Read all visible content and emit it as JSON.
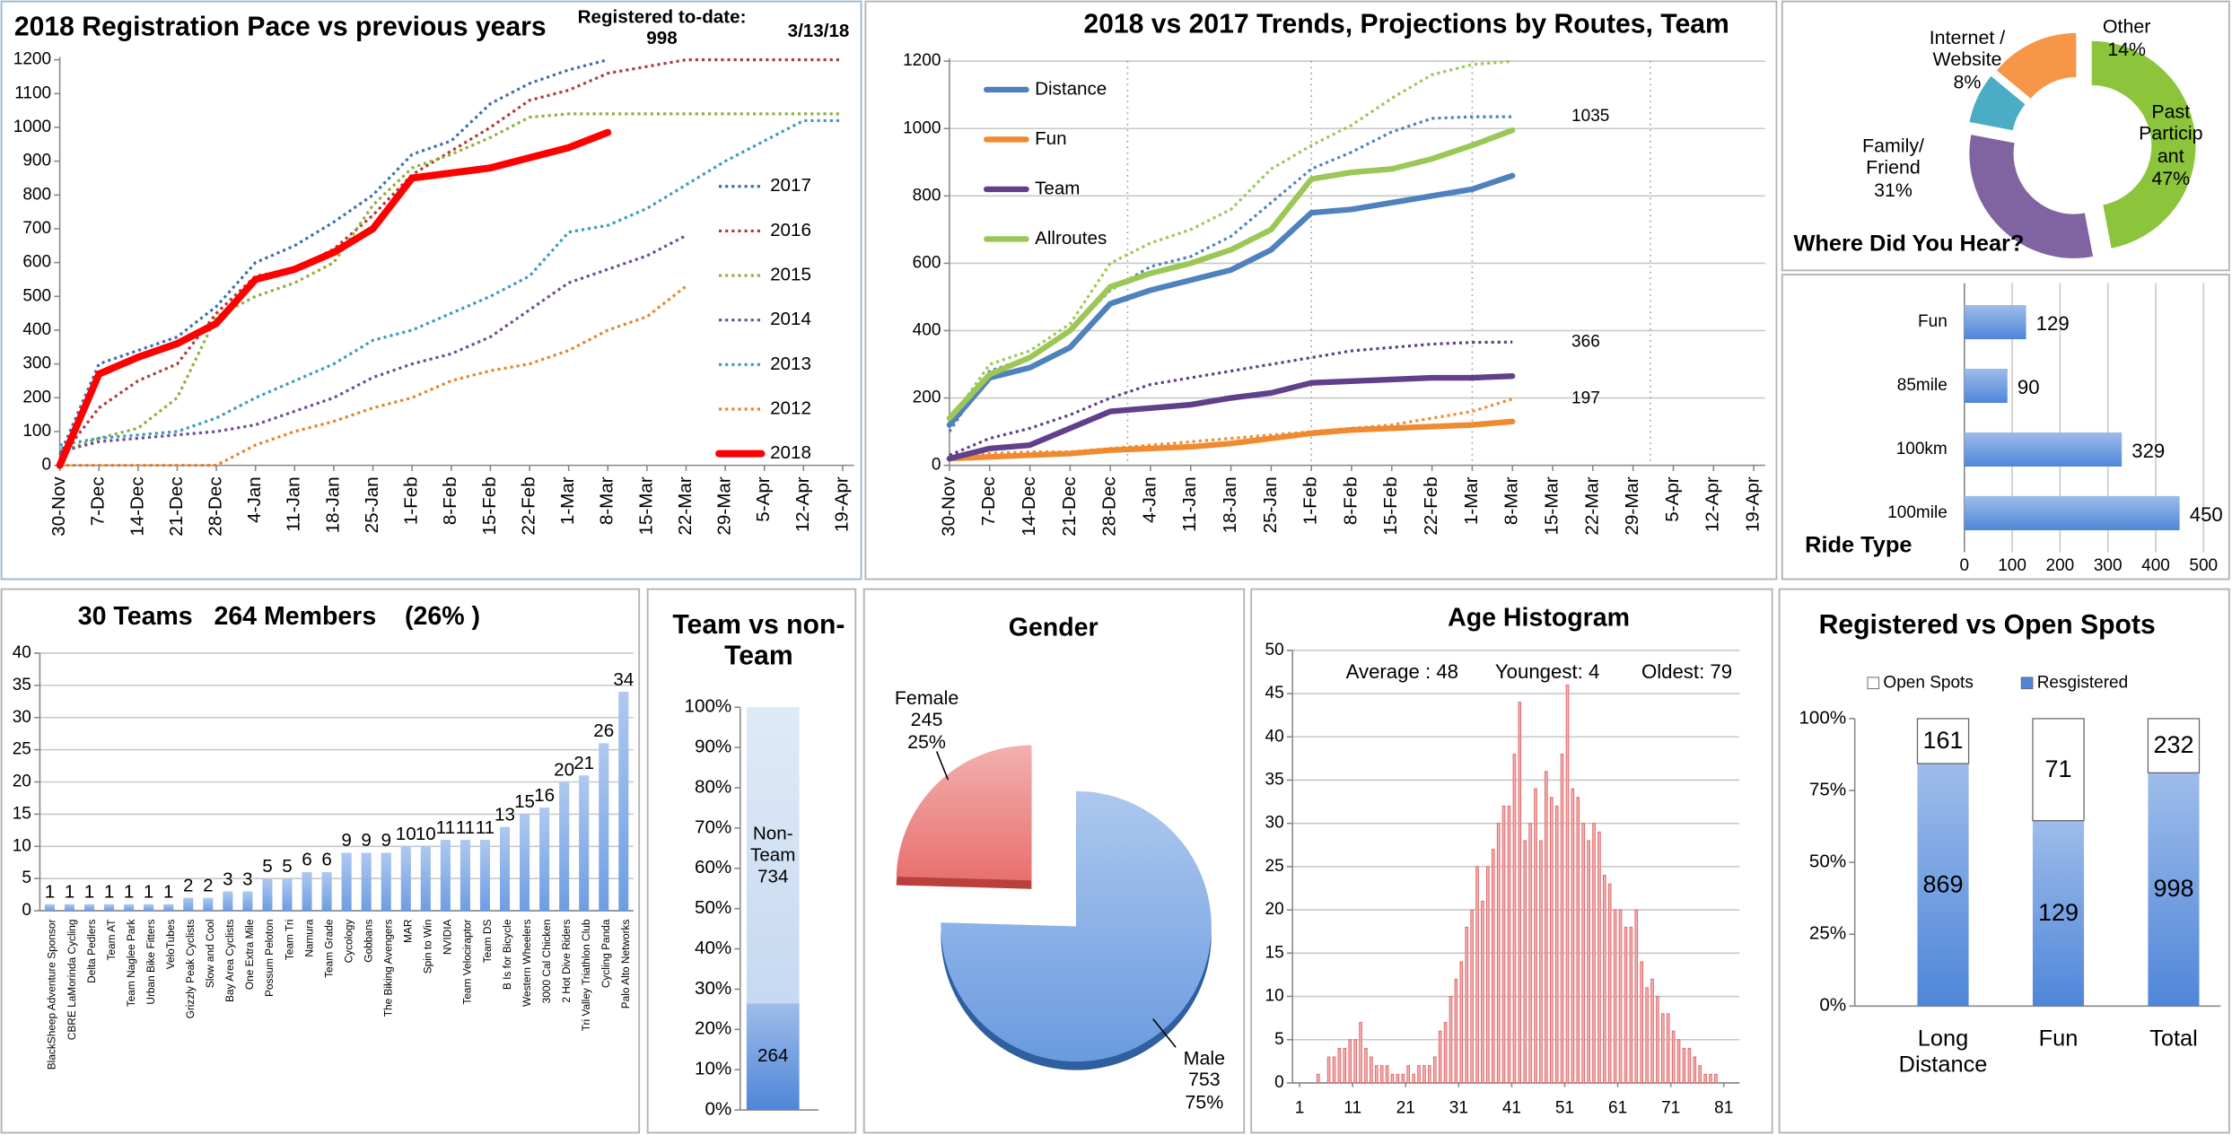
{
  "chart_data": [
    {
      "type": "line",
      "title": "2018 Registration Pace vs previous years",
      "annotations": [
        "Registered to-date: 998",
        "3/13/18"
      ],
      "categories": [
        "30-Nov",
        "7-Dec",
        "14-Dec",
        "21-Dec",
        "28-Dec",
        "4-Jan",
        "11-Jan",
        "18-Jan",
        "25-Jan",
        "1-Feb",
        "8-Feb",
        "15-Feb",
        "22-Feb",
        "1-Mar",
        "8-Mar",
        "15-Mar",
        "22-Mar",
        "29-Mar",
        "5-Apr",
        "12-Apr",
        "19-Apr"
      ],
      "ylim": [
        0,
        1200
      ],
      "yticks": [
        0,
        100,
        200,
        300,
        400,
        500,
        600,
        700,
        800,
        900,
        1000,
        1100,
        1200
      ],
      "grid": false,
      "legend": "right",
      "series": [
        {
          "name": "2017",
          "color": "#3a6fb0",
          "dash": "dotted",
          "values": [
            30,
            300,
            340,
            380,
            470,
            600,
            650,
            720,
            800,
            920,
            960,
            1070,
            1130,
            1170,
            1200,
            null,
            null,
            null,
            null,
            null,
            null
          ]
        },
        {
          "name": "2016",
          "color": "#b03a3a",
          "dash": "dotted",
          "values": [
            20,
            170,
            250,
            300,
            450,
            560,
            580,
            640,
            740,
            860,
            930,
            1000,
            1080,
            1110,
            1160,
            1180,
            1200,
            1200,
            1200,
            1200,
            1200
          ]
        },
        {
          "name": "2015",
          "color": "#8fb03a",
          "dash": "dotted",
          "values": [
            40,
            80,
            110,
            200,
            440,
            500,
            540,
            600,
            770,
            880,
            920,
            970,
            1030,
            1040,
            1040,
            1040,
            1040,
            1040,
            1040,
            1040,
            1040
          ]
        },
        {
          "name": "2014",
          "color": "#6e4d96",
          "dash": "dotted",
          "values": [
            40,
            70,
            80,
            90,
            100,
            120,
            160,
            200,
            260,
            300,
            330,
            380,
            460,
            540,
            580,
            620,
            680,
            null,
            null,
            null,
            null
          ]
        },
        {
          "name": "2013",
          "color": "#3a9bbd",
          "dash": "dotted",
          "values": [
            60,
            80,
            90,
            100,
            140,
            200,
            250,
            300,
            370,
            400,
            450,
            500,
            560,
            690,
            710,
            760,
            830,
            900,
            960,
            1020,
            1020
          ]
        },
        {
          "name": "2012",
          "color": "#e6842a",
          "dash": "dotted",
          "values": [
            0,
            0,
            0,
            0,
            0,
            60,
            100,
            130,
            170,
            200,
            250,
            280,
            300,
            340,
            400,
            440,
            530,
            null,
            null,
            null,
            null
          ]
        },
        {
          "name": "2018",
          "color": "#ff0000",
          "values": [
            0,
            270,
            320,
            360,
            420,
            550,
            580,
            630,
            700,
            850,
            865,
            880,
            910,
            940,
            985,
            null,
            null,
            null,
            null,
            null,
            null
          ]
        }
      ]
    },
    {
      "type": "line",
      "title": "2018 vs 2017 Trends, Projections by Routes, Team",
      "categories": [
        "30-Nov",
        "7-Dec",
        "14-Dec",
        "21-Dec",
        "28-Dec",
        "4-Jan",
        "11-Jan",
        "18-Jan",
        "25-Jan",
        "1-Feb",
        "8-Feb",
        "15-Feb",
        "22-Feb",
        "1-Mar",
        "8-Mar",
        "15-Mar",
        "22-Mar",
        "29-Mar",
        "5-Apr",
        "12-Apr",
        "19-Apr"
      ],
      "ylim": [
        0,
        1200
      ],
      "yticks": [
        0,
        200,
        400,
        600,
        800,
        1000,
        1200
      ],
      "grid": true,
      "legend": "top-left",
      "series": [
        {
          "color": "#4f81bd",
          "dash": "dotted",
          "end_label": 1035,
          "values": [
            100,
            280,
            320,
            400,
            520,
            590,
            620,
            680,
            780,
            880,
            930,
            990,
            1030,
            1035,
            1035,
            null,
            null,
            null,
            null,
            null,
            null
          ]
        },
        {
          "color": "#f08a30",
          "dash": "dotted",
          "end_label": 197,
          "values": [
            30,
            35,
            40,
            40,
            50,
            60,
            70,
            80,
            90,
            100,
            110,
            120,
            140,
            160,
            197,
            null,
            null,
            null,
            null,
            null,
            null
          ]
        },
        {
          "color": "#60408a",
          "dash": "dotted",
          "end_label": 366,
          "values": [
            30,
            80,
            110,
            150,
            200,
            240,
            260,
            280,
            300,
            320,
            340,
            350,
            360,
            365,
            366,
            null,
            null,
            null,
            null,
            null,
            null
          ]
        },
        {
          "color": "#9bc756",
          "dash": "dotted",
          "values": [
            130,
            300,
            340,
            420,
            600,
            660,
            700,
            760,
            880,
            950,
            1010,
            1090,
            1160,
            1190,
            1200,
            null,
            null,
            null,
            null,
            null,
            null
          ]
        },
        {
          "name": "Distance",
          "color": "#4f81bd",
          "values": [
            120,
            260,
            290,
            350,
            480,
            520,
            550,
            580,
            640,
            750,
            760,
            780,
            800,
            820,
            860,
            null,
            null,
            null,
            null,
            null,
            null
          ]
        },
        {
          "name": "Fun",
          "color": "#f08a30",
          "values": [
            20,
            25,
            30,
            35,
            45,
            50,
            55,
            65,
            80,
            95,
            105,
            110,
            115,
            120,
            130,
            null,
            null,
            null,
            null,
            null,
            null
          ]
        },
        {
          "name": "Team",
          "color": "#60408a",
          "values": [
            20,
            50,
            60,
            110,
            160,
            170,
            180,
            200,
            215,
            245,
            250,
            255,
            260,
            260,
            265,
            null,
            null,
            null,
            null,
            null,
            null
          ]
        },
        {
          "name": "Allroutes",
          "color": "#9bc756",
          "values": [
            140,
            270,
            320,
            400,
            530,
            570,
            600,
            640,
            700,
            850,
            870,
            880,
            910,
            950,
            995,
            null,
            null,
            null,
            null,
            null,
            null
          ]
        }
      ]
    },
    {
      "type": "donut",
      "title": "Where Did You Hear?",
      "categories": [
        "Past Participant",
        "Family/ Friend",
        "Internet / Website",
        "Other"
      ],
      "values": [
        47,
        31,
        8,
        14
      ],
      "value_labels": [
        "47%",
        "31%",
        "8%",
        "14%"
      ],
      "colors": [
        "#8cc43c",
        "#8064a2",
        "#4bacc6",
        "#f79646"
      ]
    },
    {
      "type": "bar",
      "orientation": "horizontal",
      "title": "Ride Type",
      "categories": [
        "Fun",
        "85mile",
        "100km",
        "100mile"
      ],
      "values": [
        129,
        90,
        329,
        450
      ],
      "color": "#4f86d9",
      "xlim": [
        0,
        500
      ],
      "xticks": [
        0,
        100,
        200,
        300,
        400,
        500
      ],
      "grid": true
    },
    {
      "type": "bar",
      "title": "30 Teams   264 Members    (26% )",
      "categories": [
        "BlackSheep Adventure Sponsor",
        "CBRE LaMorinda Cycling",
        "Delta Pedlers",
        "Team AT",
        "Team Naglee Park",
        "Urban Bike Fitters",
        "VeloTubes",
        "Grizzly Peak Cyclists",
        "Slow and Cool",
        "Bay Area Cyclists",
        "One Extra Mile",
        "Possum Peloton",
        "Team Tri",
        "Namura",
        "Team Grade",
        "Cycology",
        "Gobbans",
        "The Biking Avengers",
        "MAR",
        "Spin to Win",
        "NVIDIA",
        "Team Velociraptor",
        "Team DS",
        "B Is for Bicycle",
        "Western Wheelers",
        "3000 Cal Chicken",
        "2 Hot Dive Riders",
        "Tri Valley Triathlon Club",
        "Cycling Panda",
        "Palo Alto Networks"
      ],
      "values": [
        1,
        1,
        1,
        1,
        1,
        1,
        1,
        2,
        2,
        3,
        3,
        5,
        5,
        6,
        6,
        9,
        9,
        9,
        10,
        10,
        11,
        11,
        11,
        13,
        15,
        16,
        20,
        21,
        26,
        34
      ],
      "color": "#6d9de3",
      "ylim": [
        0,
        40
      ],
      "yticks": [
        0,
        5,
        10,
        15,
        20,
        25,
        30,
        35,
        40
      ],
      "grid": true
    },
    {
      "type": "stacked_bar",
      "normalize": true,
      "title": "Team vs non-Team",
      "ylim": [
        0,
        100
      ],
      "yticks": [
        {
          "value": 0,
          "label": "0%"
        },
        {
          "value": 10,
          "label": "10%"
        },
        {
          "value": 20,
          "label": "20%"
        },
        {
          "value": 30,
          "label": "30%"
        },
        {
          "value": 40,
          "label": "40%"
        },
        {
          "value": 50,
          "label": "50%"
        },
        {
          "value": 60,
          "label": "60%"
        },
        {
          "value": 70,
          "label": "70%"
        },
        {
          "value": 80,
          "label": "80%"
        },
        {
          "value": 90,
          "label": "90%"
        },
        {
          "value": 100,
          "label": "100%"
        }
      ],
      "series": [
        {
          "color": "#4f86d9",
          "values": [
            264
          ]
        },
        {
          "name": "Non-Team",
          "color": "#c6d9f1",
          "values": [
            734
          ]
        }
      ]
    },
    {
      "type": "pie",
      "title": "Gender",
      "categories": [
        "Female",
        "Male"
      ],
      "values": [
        245,
        753
      ],
      "share_labels": [
        "25%",
        "75%"
      ],
      "colors": [
        "#e8706e",
        "#6a9be0"
      ]
    },
    {
      "type": "histogram",
      "title": "Age Histogram",
      "annotations": [
        "Average : 48",
        "Youngest: 4",
        "Oldest: 79"
      ],
      "bins": [
        1,
        2,
        3,
        4,
        5,
        6,
        7,
        8,
        9,
        10,
        11,
        12,
        13,
        14,
        15,
        16,
        17,
        18,
        19,
        20,
        21,
        22,
        23,
        24,
        25,
        26,
        27,
        28,
        29,
        30,
        31,
        32,
        33,
        34,
        35,
        36,
        37,
        38,
        39,
        40,
        41,
        42,
        43,
        44,
        45,
        46,
        47,
        48,
        49,
        50,
        51,
        52,
        53,
        54,
        55,
        56,
        57,
        58,
        59,
        60,
        61,
        62,
        63,
        64,
        65,
        66,
        67,
        68,
        69,
        70,
        71,
        72,
        73,
        74,
        75,
        76,
        77,
        78,
        79,
        80,
        81
      ],
      "counts": [
        0,
        0,
        0,
        1,
        0,
        3,
        3,
        4,
        4,
        5,
        5,
        7,
        4,
        3,
        2,
        2,
        2,
        1,
        1,
        1,
        2,
        1,
        2,
        2,
        2,
        3,
        6,
        7,
        10,
        12,
        14,
        18,
        20,
        25,
        21,
        25,
        27,
        30,
        32,
        32,
        38,
        44,
        28,
        30,
        34,
        28,
        36,
        33,
        32,
        38,
        46,
        34,
        33,
        30,
        28,
        30,
        29,
        24,
        23,
        20,
        20,
        18,
        18,
        20,
        14,
        11,
        12,
        10,
        8,
        8,
        6,
        5,
        4,
        4,
        3,
        2,
        1,
        1,
        1,
        0
      ],
      "color": "#f4b3b3",
      "xlim": [
        1,
        81
      ],
      "xticks": [
        1,
        11,
        21,
        31,
        41,
        51,
        61,
        71,
        81
      ],
      "ylim": [
        0,
        50
      ],
      "yticks": [
        0,
        5,
        10,
        15,
        20,
        25,
        30,
        35,
        40,
        45,
        50
      ],
      "grid": true
    },
    {
      "type": "stacked_bar",
      "normalize": true,
      "title": "Registered vs Open Spots",
      "legend": "top",
      "categories": [
        "Long Distance",
        "Fun",
        "Total"
      ],
      "ylim": [
        0,
        100
      ],
      "yticks": [
        {
          "value": 0,
          "label": "0%"
        },
        {
          "value": 25,
          "label": "25%"
        },
        {
          "value": 50,
          "label": "50%"
        },
        {
          "value": 75,
          "label": "75%"
        },
        {
          "value": 100,
          "label": "100%"
        }
      ],
      "series": [
        {
          "name": "Resgistered",
          "color": "#4f86d9",
          "values": [
            869,
            129,
            998
          ]
        },
        {
          "name": "Open Spots",
          "color": "#ffffff",
          "values": [
            161,
            71,
            232
          ]
        }
      ]
    }
  ]
}
